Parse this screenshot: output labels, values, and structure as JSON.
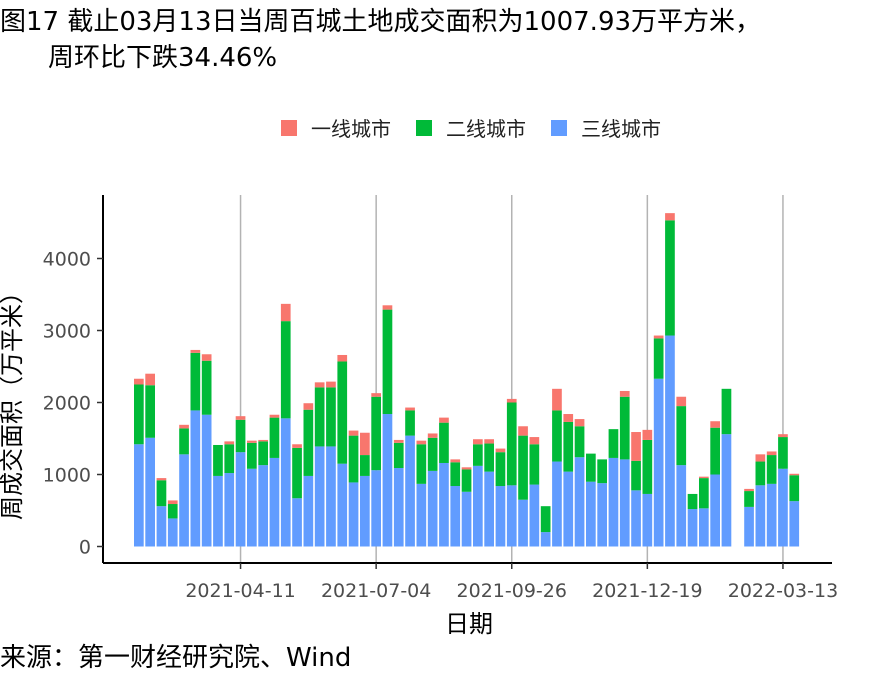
{
  "title_line1": "图17 截止03月13日当周百城土地成交面积为1007.93万平方米，",
  "title_line2": "周环比下跌34.46%",
  "source": "来源：第一财经研究院、Wind",
  "chart_data": {
    "type": "bar",
    "stacked": true,
    "xlabel": "日期",
    "ylabel": "周成交面积（万平米）",
    "ylim": [
      0,
      4900
    ],
    "yticks": [
      0,
      1000,
      2000,
      3000,
      4000
    ],
    "xtick_labels": [
      "2021-04-11",
      "2021-07-04",
      "2021-09-26",
      "2021-12-19",
      "2022-03-13"
    ],
    "xtick_indices": [
      9,
      21,
      33,
      45,
      57
    ],
    "grid": "vertical-major",
    "legend_position": "top",
    "colors": {
      "一线城市": "#F8766D",
      "二线城市": "#00BA38",
      "三线城市": "#619CFF"
    },
    "series": [
      {
        "name": "三线城市",
        "values": [
          1420,
          1510,
          560,
          390,
          1280,
          1890,
          1830,
          980,
          1020,
          1310,
          1080,
          1130,
          1230,
          1780,
          670,
          980,
          1390,
          1390,
          1150,
          890,
          980,
          1060,
          1840,
          1090,
          1540,
          870,
          1050,
          1160,
          840,
          760,
          1120,
          1040,
          840,
          850,
          650,
          860,
          200,
          1180,
          1040,
          1240,
          900,
          880,
          1230,
          1210,
          780,
          730,
          2330,
          2930,
          1130,
          520,
          530,
          1000,
          1560,
          0,
          550,
          850,
          870,
          1080,
          630
        ]
      },
      {
        "name": "二线城市",
        "values": [
          830,
          730,
          360,
          200,
          360,
          800,
          750,
          430,
          400,
          450,
          360,
          330,
          560,
          1350,
          700,
          920,
          820,
          820,
          1420,
          650,
          290,
          1020,
          1450,
          350,
          350,
          550,
          460,
          560,
          330,
          310,
          300,
          390,
          470,
          1150,
          890,
          560,
          360,
          710,
          690,
          430,
          390,
          330,
          400,
          870,
          410,
          750,
          560,
          1600,
          820,
          210,
          420,
          650,
          630,
          0,
          220,
          330,
          400,
          440,
          360
        ]
      },
      {
        "name": "一线城市",
        "values": [
          80,
          160,
          30,
          50,
          50,
          40,
          90,
          0,
          40,
          50,
          30,
          20,
          40,
          240,
          50,
          90,
          70,
          80,
          90,
          70,
          310,
          50,
          60,
          40,
          40,
          50,
          60,
          70,
          40,
          30,
          70,
          60,
          50,
          50,
          130,
          100,
          0,
          300,
          110,
          100,
          0,
          0,
          0,
          80,
          400,
          140,
          40,
          100,
          130,
          0,
          20,
          90,
          0,
          0,
          30,
          100,
          50,
          40,
          20
        ]
      }
    ]
  }
}
